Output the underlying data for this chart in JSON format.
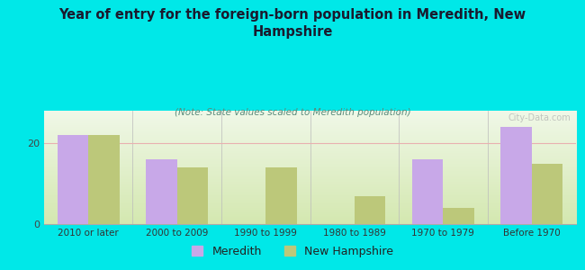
{
  "title": "Year of entry for the foreign-born population in Meredith, New\nHampshire",
  "subtitle": "(Note: State values scaled to Meredith population)",
  "categories": [
    "2010 or later",
    "2000 to 2009",
    "1990 to 1999",
    "1980 to 1989",
    "1970 to 1979",
    "Before 1970"
  ],
  "meredith_values": [
    22,
    16,
    0,
    0,
    16,
    24
  ],
  "nh_values": [
    22,
    14,
    14,
    7,
    4,
    15
  ],
  "meredith_color": "#c8a8e8",
  "nh_color": "#bcc87a",
  "bar_width": 0.35,
  "ylim": [
    0,
    28
  ],
  "ytick_val": 20,
  "background_outer": "#00e8e8",
  "background_inner_bottom": "#d4e8b0",
  "background_inner_top": "#f0f8e8",
  "grid_color": "#e8b0b0",
  "watermark": "City-Data.com",
  "legend_meredith": "Meredith",
  "legend_nh": "New Hampshire",
  "title_color": "#1a1a2e",
  "subtitle_color": "#5a8a7a"
}
